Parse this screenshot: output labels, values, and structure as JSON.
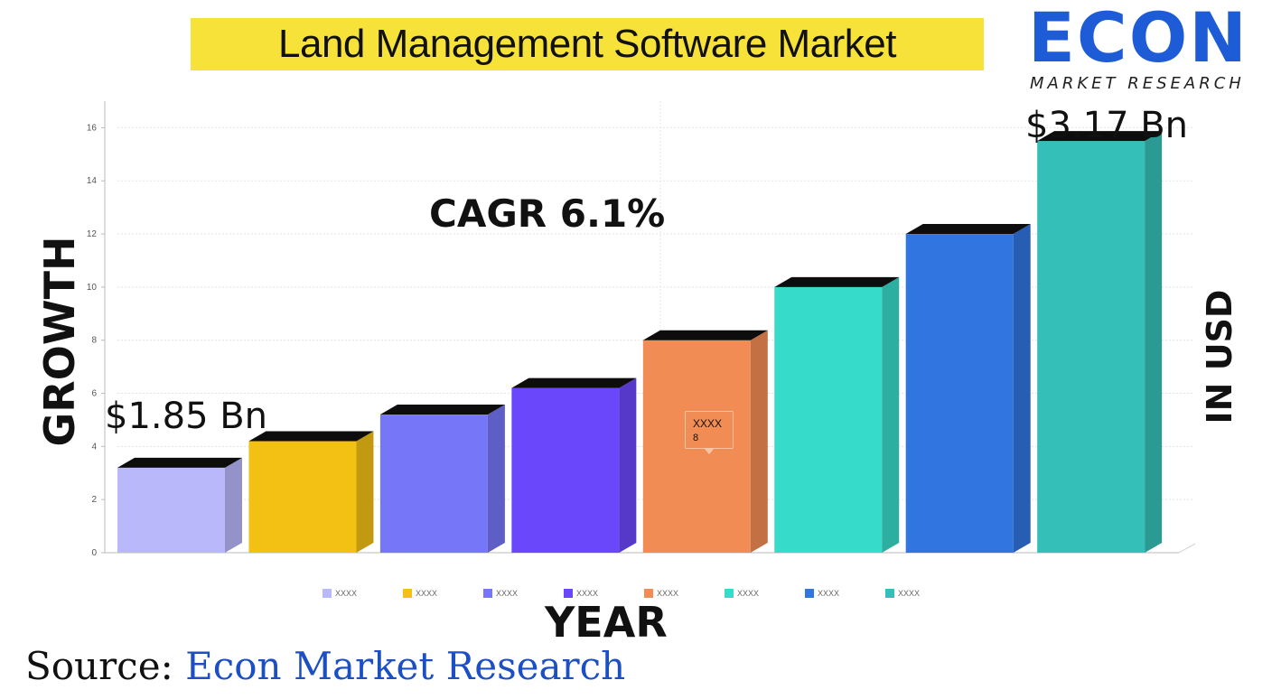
{
  "header": {
    "title": "Land Management Software Market"
  },
  "logo": {
    "word": "ECON",
    "subtitle": "MARKET RESEARCH",
    "color": "#1e5bd6"
  },
  "labels": {
    "growth": "GROWTH",
    "in_usd": "IN USD",
    "year": "YEAR",
    "cagr": "CAGR 6.1%",
    "first_value": "$1.85 Bn",
    "last_value": "$3.17 Bn"
  },
  "tooltip": {
    "name": "XXXX",
    "value": "8"
  },
  "source": {
    "prefix": "Source: ",
    "name": "Econ Market Research"
  },
  "chart_data": {
    "type": "bar",
    "categories": [
      "XXXX",
      "XXXX",
      "XXXX",
      "XXXX",
      "XXXX",
      "XXXX",
      "XXXX",
      "XXXX"
    ],
    "values": [
      3.2,
      4.2,
      5.2,
      6.2,
      8,
      10,
      12,
      15.5
    ],
    "colors": [
      "#b8b8fb",
      "#f2c114",
      "#7676f8",
      "#6b47fb",
      "#f28c55",
      "#37dbc9",
      "#3176e0",
      "#34c0b8"
    ],
    "ylim": [
      0,
      17
    ],
    "yticks": [
      0,
      2,
      4,
      6,
      8,
      10,
      12,
      14,
      16
    ],
    "legend": [
      "XXXX",
      "XXXX",
      "XXXX",
      "XXXX",
      "XXXX",
      "XXXX",
      "XXXX",
      "XXXX"
    ],
    "legend_position": "bottom",
    "grid": true,
    "three_d": true
  }
}
